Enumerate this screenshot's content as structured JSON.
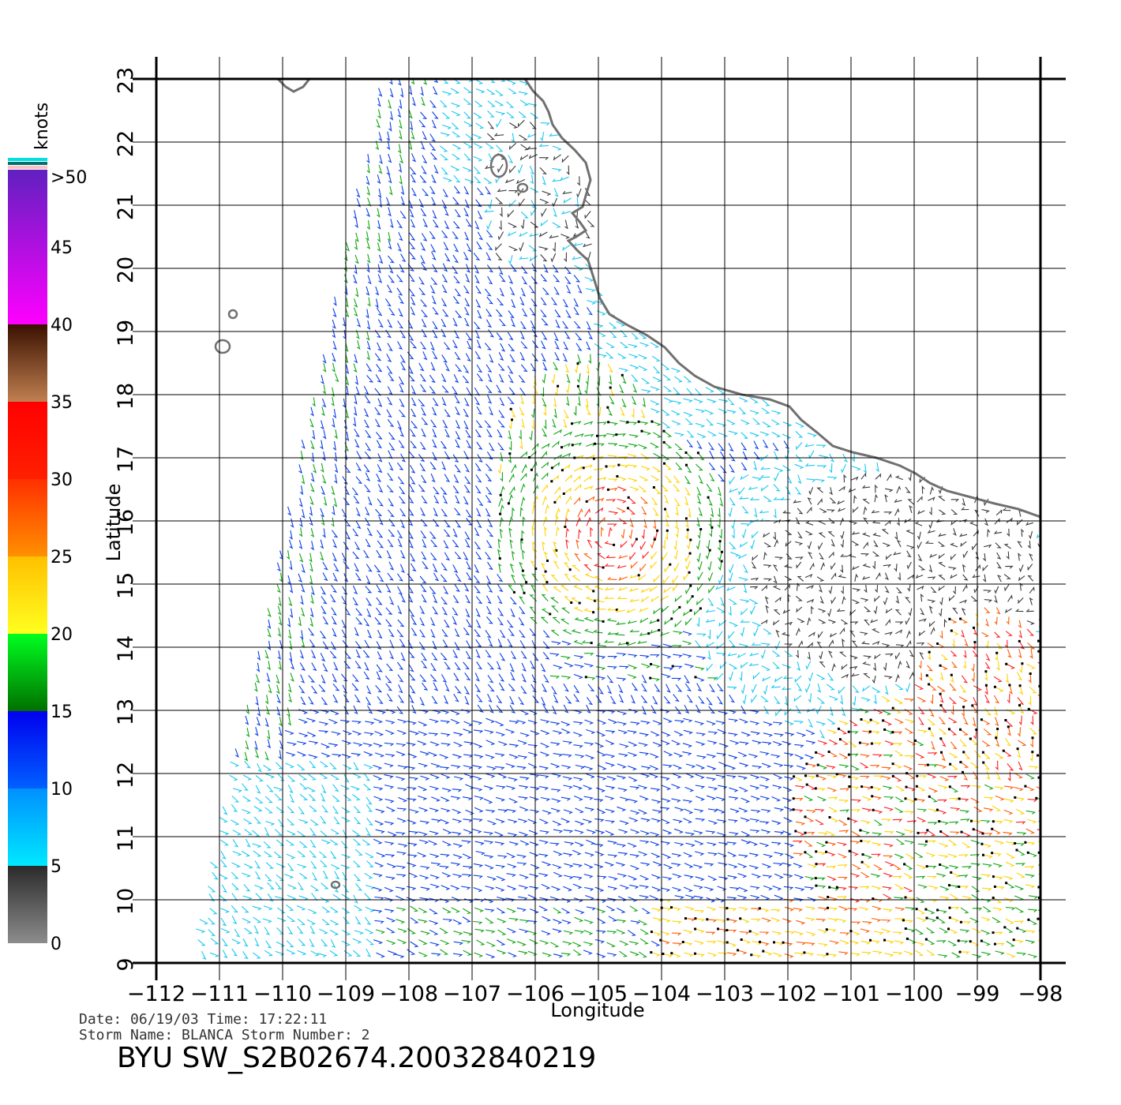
{
  "map": {
    "x_axis_label": "Longitude",
    "y_axis_label": "Latitude",
    "lon_ticks": [
      "−112",
      "−111",
      "−110",
      "−109",
      "−108",
      "−107",
      "−106",
      "−105",
      "−104",
      "−103",
      "−102",
      "−101",
      "−100",
      "−99",
      "−98"
    ],
    "lat_ticks": [
      "9",
      "10",
      "11",
      "12",
      "13",
      "14",
      "15",
      "16",
      "17",
      "18",
      "19",
      "20",
      "21",
      "22",
      "23"
    ],
    "lon_range": [
      -112,
      -98
    ],
    "lat_range": [
      9,
      23
    ]
  },
  "colorbar": {
    "unit_label": "knots",
    "labels": [
      "0",
      "5",
      "10",
      "15",
      "20",
      "25",
      "30",
      "35",
      "40",
      "45",
      ">50"
    ],
    "bands": [
      {
        "from": 0,
        "to": 5,
        "colors": [
          "#8c8c8c",
          "#2a2a2a"
        ]
      },
      {
        "from": 5,
        "to": 10,
        "colors": [
          "#00e8ff",
          "#0090ff"
        ]
      },
      {
        "from": 10,
        "to": 15,
        "colors": [
          "#0060ff",
          "#0000ee"
        ]
      },
      {
        "from": 15,
        "to": 20,
        "colors": [
          "#007000",
          "#00ff20"
        ]
      },
      {
        "from": 20,
        "to": 25,
        "colors": [
          "#ffff20",
          "#ffc000"
        ]
      },
      {
        "from": 25,
        "to": 30,
        "colors": [
          "#ff9000",
          "#ff3000"
        ]
      },
      {
        "from": 30,
        "to": 35,
        "colors": [
          "#ff2000",
          "#ff0000"
        ]
      },
      {
        "from": 35,
        "to": 40,
        "colors": [
          "#c08050",
          "#3a1000"
        ]
      },
      {
        "from": 40,
        "to": 50,
        "colors": [
          "#ff00ff",
          "#6020c0"
        ]
      }
    ],
    "cap_colors": [
      "#00e0e0",
      "#007070",
      "#ffc0c0"
    ]
  },
  "colors": {
    "coastline": "#707070",
    "grid": "#000000",
    "calm": "#3a3a3a",
    "light": "#19c8f0",
    "moderate": "#0a3ee6",
    "fresh": "#0fa514",
    "strong": "#ffd200",
    "gale": "#ff5a00",
    "storm": "#ff1e1e"
  },
  "info": {
    "date_line": "Date: 06/19/03   Time: 17:22:11",
    "storm_line": "Storm  Name: BLANCA    Storm  Number: 2",
    "product_title": "BYU  SW_S2B02674.20032840219"
  }
}
